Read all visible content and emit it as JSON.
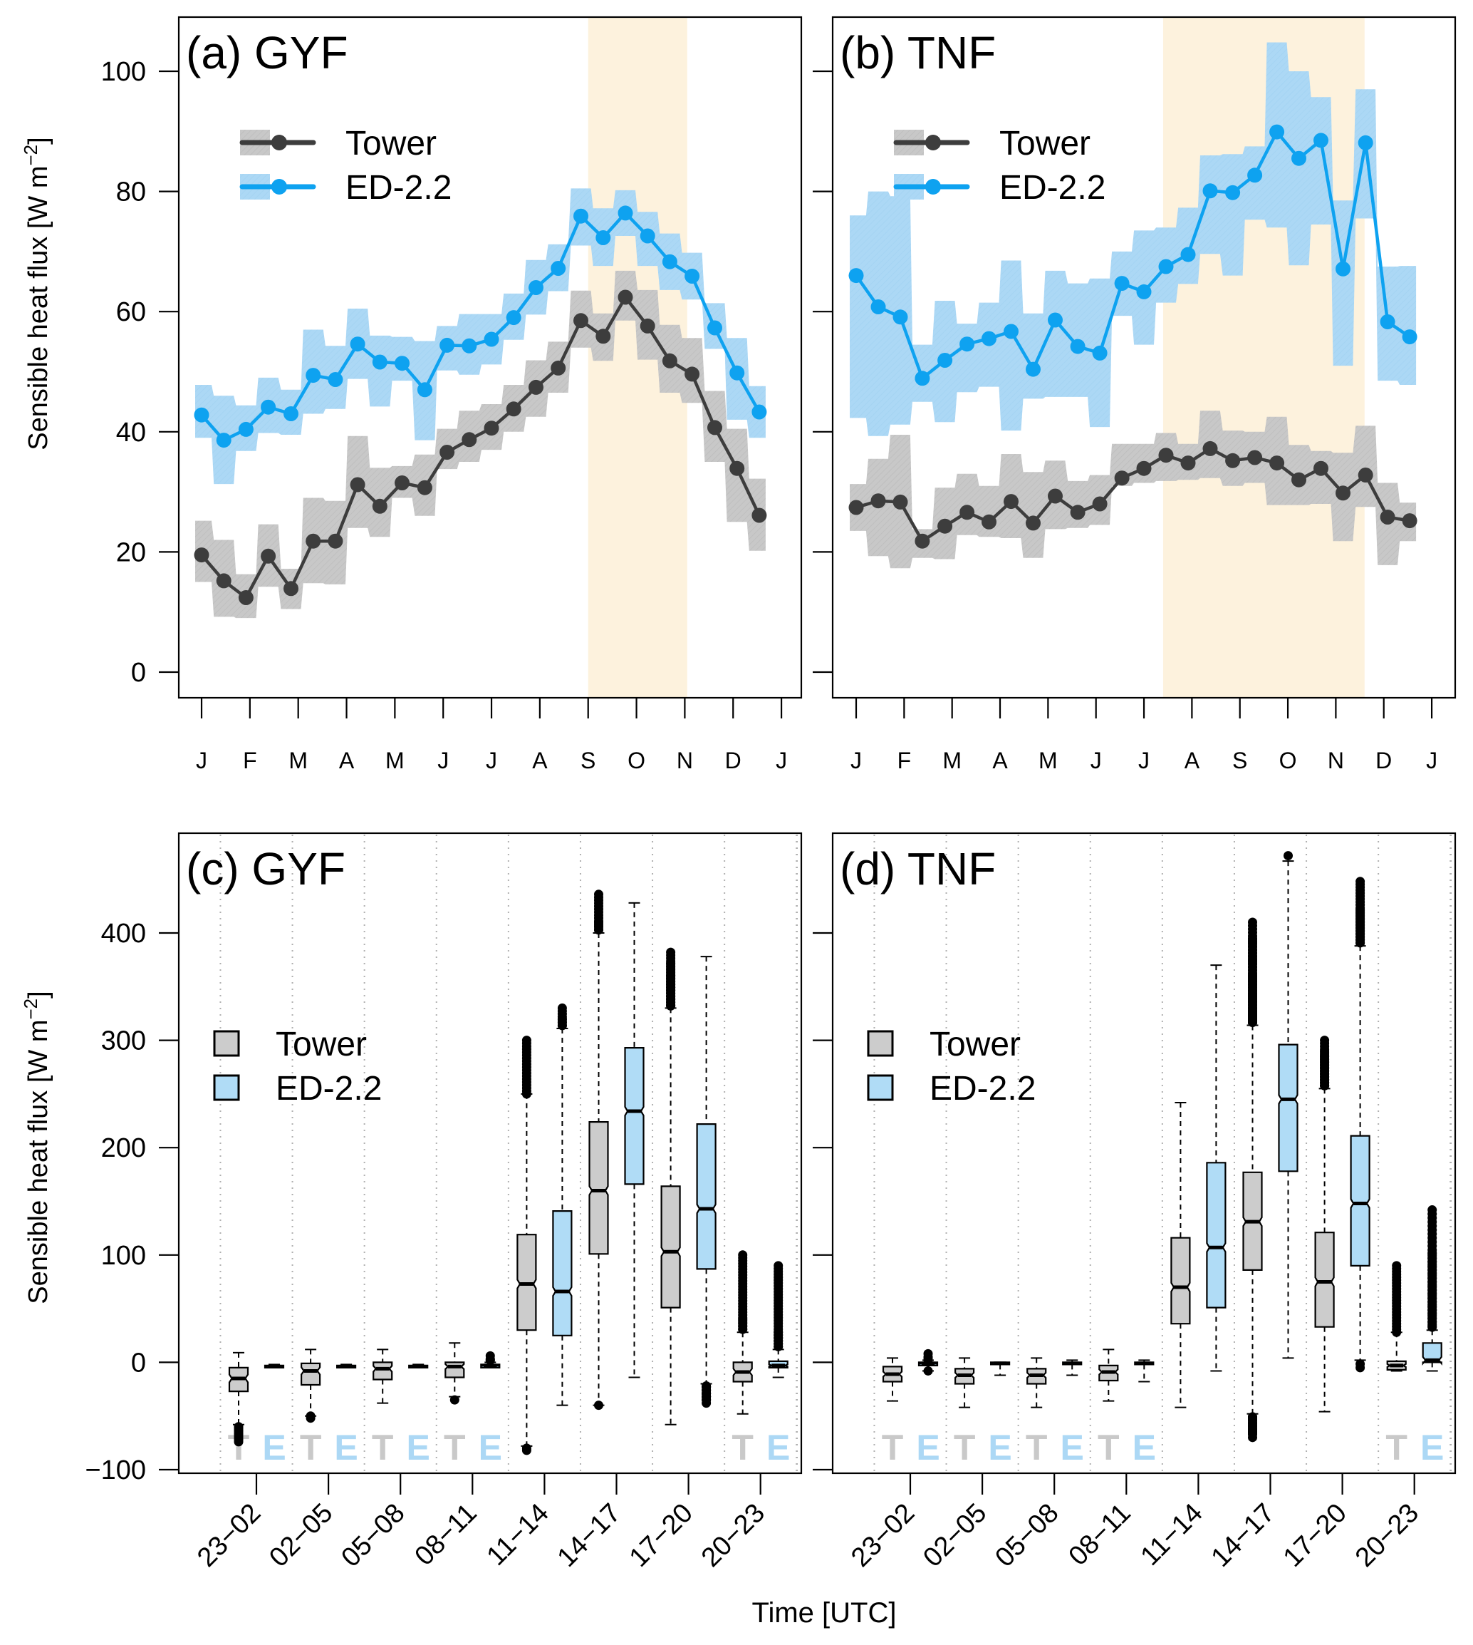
{
  "figure": {
    "ylabel": "Sensible heat flux [W m",
    "ylabel_sup": "−2",
    "ylabel_close": "]",
    "xlabel_bottom": "Time [UTC]"
  },
  "colors": {
    "tower_line": "#3d3d3d",
    "tower_band": "#c8c8c8",
    "ed_line": "#0ea2f0",
    "ed_band": "#acd8f5",
    "season_shade": "#fdf2dd",
    "tower_box": "#cccccc",
    "ed_box": "#b0dcf6",
    "tower_letter": "#c9c9c9",
    "ed_letter": "#acd8f5",
    "grid_dotted": "#b0b0b0"
  },
  "chart_data": [
    {
      "panel": "a",
      "type": "line",
      "title": "(a) GYF",
      "xlabel": "",
      "ylabel": "Sensible heat flux [W m−2]",
      "ylim": [
        0,
        105
      ],
      "yticks": [
        0,
        20,
        40,
        60,
        80,
        100
      ],
      "xtick_labels": [
        "J",
        "F",
        "M",
        "A",
        "M",
        "J",
        "J",
        "A",
        "S",
        "O",
        "N",
        "D",
        "J"
      ],
      "x_unit": "month index (0 = Jan 1, 12 = next Jan 1)",
      "x": [
        0,
        0.46,
        0.92,
        1.38,
        1.85,
        2.31,
        2.77,
        3.23,
        3.69,
        4.15,
        4.62,
        5.08,
        5.54,
        6.0,
        6.46,
        6.92,
        7.38,
        7.85,
        8.31,
        8.77,
        9.23,
        9.69,
        10.15,
        10.62,
        11.08,
        11.54
      ],
      "shade_x": [
        8.0,
        10.05
      ],
      "legend": [
        "Tower",
        "ED-2.2"
      ],
      "legend_position": "top-left",
      "series": [
        {
          "name": "Tower",
          "values": [
            19.5,
            15.2,
            12.4,
            19.3,
            13.9,
            21.8,
            21.8,
            31.2,
            27.6,
            31.5,
            30.7,
            36.6,
            38.7,
            40.6,
            43.8,
            47.4,
            50.6,
            58.5,
            55.9,
            62.4,
            57.6,
            51.8,
            49.6,
            40.7,
            33.9,
            26.1
          ],
          "lower": [
            15.0,
            9.2,
            9.0,
            14.2,
            10.5,
            14.8,
            14.6,
            24.0,
            22.5,
            29.0,
            26.0,
            33.8,
            35.0,
            37.0,
            40.0,
            42.5,
            46.5,
            54.0,
            51.8,
            58.5,
            52.0,
            46.5,
            44.8,
            35.0,
            25.0,
            20.2
          ],
          "upper": [
            25.2,
            22.0,
            16.3,
            24.6,
            17.2,
            29.0,
            28.5,
            39.3,
            34.0,
            34.3,
            36.2,
            40.5,
            43.5,
            44.6,
            47.8,
            51.9,
            55.0,
            63.5,
            59.7,
            66.8,
            63.6,
            57.8,
            55.6,
            46.8,
            40.5,
            32.2
          ]
        },
        {
          "name": "ED-2.2",
          "values": [
            42.8,
            38.6,
            40.4,
            44.1,
            43.0,
            49.4,
            48.7,
            54.6,
            51.6,
            51.4,
            47.0,
            54.4,
            54.3,
            55.4,
            59.0,
            64.0,
            67.2,
            75.9,
            72.3,
            76.4,
            72.6,
            68.3,
            65.9,
            57.3,
            49.8,
            43.3
          ],
          "lower": [
            39.0,
            31.3,
            36.8,
            39.8,
            39.5,
            43.0,
            43.8,
            48.8,
            44.2,
            48.5,
            38.6,
            50.2,
            49.5,
            51.2,
            55.3,
            59.5,
            63.4,
            71.0,
            67.6,
            72.6,
            67.6,
            63.6,
            62.0,
            53.8,
            42.0,
            39.0
          ],
          "upper": [
            47.8,
            46.0,
            44.4,
            49.0,
            47.0,
            57.0,
            54.3,
            60.5,
            56.0,
            55.8,
            55.1,
            57.6,
            59.6,
            59.6,
            63.0,
            68.6,
            71.2,
            80.5,
            77.2,
            80.2,
            76.6,
            73.0,
            69.8,
            61.4,
            55.6,
            47.6
          ]
        }
      ]
    },
    {
      "panel": "b",
      "type": "line",
      "title": "(b) TNF",
      "xlabel": "",
      "ylabel": "",
      "ylim": [
        0,
        105
      ],
      "yticks": [
        0,
        20,
        40,
        60,
        80,
        100
      ],
      "xtick_labels": [
        "J",
        "F",
        "M",
        "A",
        "M",
        "J",
        "J",
        "A",
        "S",
        "O",
        "N",
        "D",
        "J"
      ],
      "x_unit": "month index (0 = Jan 1, 12 = next Jan 1)",
      "x": [
        0,
        0.46,
        0.92,
        1.38,
        1.85,
        2.31,
        2.77,
        3.23,
        3.69,
        4.15,
        4.62,
        5.08,
        5.54,
        6.0,
        6.46,
        6.92,
        7.38,
        7.85,
        8.31,
        8.77,
        9.23,
        9.69,
        10.15,
        10.62,
        11.08,
        11.54
      ],
      "shade_x": [
        6.4,
        10.6
      ],
      "legend": [
        "Tower",
        "ED-2.2"
      ],
      "legend_position": "top-left",
      "series": [
        {
          "name": "Tower",
          "values": [
            27.4,
            28.5,
            28.3,
            21.8,
            24.3,
            26.6,
            25.0,
            28.4,
            24.8,
            29.3,
            26.6,
            28.0,
            32.3,
            33.9,
            36.1,
            34.8,
            37.2,
            35.2,
            35.7,
            34.8,
            32.0,
            33.9,
            29.8,
            32.8,
            25.8,
            25.2
          ],
          "lower": [
            23.5,
            19.3,
            17.3,
            19.0,
            18.8,
            22.8,
            22.5,
            22.3,
            19.0,
            23.8,
            24.0,
            24.5,
            31.0,
            31.5,
            31.8,
            32.0,
            32.3,
            31.0,
            31.5,
            27.8,
            27.8,
            28.0,
            21.8,
            27.5,
            17.8,
            21.8
          ],
          "upper": [
            31.3,
            35.5,
            39.5,
            23.8,
            30.7,
            33.0,
            31.0,
            36.3,
            33.3,
            35.2,
            31.8,
            32.8,
            38.0,
            38.0,
            39.8,
            38.0,
            43.5,
            40.2,
            40.0,
            42.5,
            37.8,
            36.8,
            36.5,
            41.0,
            31.5,
            28.2
          ]
        },
        {
          "name": "ED-2.2",
          "values": [
            66.0,
            60.8,
            59.1,
            48.9,
            51.9,
            54.6,
            55.5,
            56.7,
            50.4,
            58.6,
            54.2,
            53.1,
            64.7,
            63.3,
            67.5,
            69.5,
            80.1,
            79.8,
            82.7,
            89.9,
            85.5,
            88.5,
            67.1,
            88.1,
            58.3,
            55.8
          ],
          "lower": [
            42.3,
            39.3,
            41.2,
            45.0,
            41.6,
            46.6,
            47.5,
            40.2,
            45.5,
            45.8,
            45.8,
            40.8,
            59.3,
            54.5,
            61.5,
            64.6,
            69.6,
            66.0,
            75.3,
            74.0,
            67.7,
            74.5,
            51.0,
            75.5,
            48.5,
            47.8
          ],
          "upper": [
            76.0,
            80.0,
            79.2,
            54.5,
            61.8,
            58.0,
            61.5,
            68.5,
            59.7,
            66.8,
            64.7,
            65.5,
            70.0,
            73.5,
            74.0,
            77.3,
            86.0,
            86.2,
            87.5,
            104.8,
            100.0,
            95.7,
            78.5,
            97.0,
            67.5,
            67.6
          ]
        }
      ]
    },
    {
      "panel": "c",
      "type": "box",
      "title": "(c) GYF",
      "xlabel": "Time [UTC]",
      "ylabel": "Sensible heat flux [W m−2]",
      "ylim": [
        -100,
        450
      ],
      "yticks": [
        -100,
        0,
        100,
        200,
        300,
        400
      ],
      "categories": [
        "23−02",
        "02−05",
        "05−08",
        "08−11",
        "11−14",
        "14−17",
        "17−20",
        "20−23"
      ],
      "legend": [
        "Tower",
        "ED-2.2"
      ],
      "legend_position": "top-left",
      "te_labels_in": [
        "23−02",
        "02−05",
        "05−08",
        "08−11",
        "20−23"
      ],
      "series": [
        {
          "name": "Tower",
          "whisker_low": [
            -58,
            -50,
            -38,
            -32,
            -78,
            -40,
            -58,
            -48
          ],
          "q1": [
            -27,
            -21,
            -16,
            -14,
            30,
            101,
            51,
            -18
          ],
          "median": [
            -15,
            -8,
            -6,
            -4,
            73,
            160,
            103,
            -9
          ],
          "q3": [
            -5,
            -1,
            0,
            0,
            119,
            224,
            164,
            0
          ],
          "whisker_high": [
            9,
            12,
            12,
            18,
            250,
            400,
            330,
            28
          ],
          "outliers_low": [
            -60,
            -82,
            -52,
            -72,
            -40,
            -74,
            -35,
            -80,
            -50,
            -70
          ],
          "outliers_high": [
            40,
            250,
            300,
            360,
            382,
            410,
            436,
            332,
            372,
            100
          ]
        },
        {
          "name": "ED-2.2",
          "whisker_low": [
            -3,
            -3,
            -3,
            -3,
            -40,
            -14,
            -20,
            -14
          ],
          "q1": [
            -5,
            -5,
            -5,
            -5,
            25,
            166,
            87,
            -5
          ],
          "median": [
            -4,
            -4,
            -4,
            -3,
            66,
            234,
            143,
            -3
          ],
          "q3": [
            -3,
            -3,
            -3,
            -2,
            141,
            293,
            222,
            1
          ],
          "whisker_high": [
            -2,
            -2,
            -2,
            0,
            311,
            428,
            378,
            12
          ],
          "outliers_low": [
            -35,
            -22,
            -35,
            -32,
            -38
          ],
          "outliers_high": [
            2,
            6,
            2,
            28,
            320,
            330,
            90
          ]
        }
      ]
    },
    {
      "panel": "d",
      "type": "box",
      "title": "(d) TNF",
      "xlabel": "Time [UTC]",
      "ylabel": "",
      "ylim": [
        -100,
        450
      ],
      "yticks": [
        -100,
        0,
        100,
        200,
        300,
        400
      ],
      "categories": [
        "23−02",
        "02−05",
        "05−08",
        "08−11",
        "11−14",
        "14−17",
        "17−20",
        "20−23"
      ],
      "legend": [
        "Tower",
        "ED-2.2"
      ],
      "legend_position": "top-left",
      "te_labels_in": [
        "23−02",
        "02−05",
        "05−08",
        "08−11",
        "20−23"
      ],
      "series": [
        {
          "name": "Tower",
          "whisker_low": [
            -36,
            -42,
            -42,
            -36,
            -42,
            -48,
            -46,
            -8
          ],
          "q1": [
            -18,
            -20,
            -20,
            -17,
            36,
            86,
            33,
            -7
          ],
          "median": [
            -11,
            -12,
            -12,
            -9,
            70,
            131,
            75,
            -3
          ],
          "q3": [
            -4,
            -6,
            -6,
            -3,
            116,
            177,
            121,
            1
          ],
          "whisker_high": [
            4,
            4,
            4,
            12,
            242,
            314,
            255,
            28
          ],
          "outliers_low": [
            -52,
            -65,
            -66,
            -70
          ],
          "outliers_high": [
            28,
            285,
            290,
            410,
            395,
            360,
            330,
            300,
            90
          ]
        },
        {
          "name": "ED-2.2",
          "whisker_low": [
            -8,
            -12,
            -12,
            -18,
            -8,
            4,
            2,
            -8
          ],
          "q1": [
            -3,
            -2,
            -2,
            -2,
            51,
            178,
            90,
            0
          ],
          "median": [
            -1,
            -1,
            -1,
            -1,
            107,
            245,
            148,
            2
          ],
          "q3": [
            0,
            0,
            0,
            0,
            186,
            296,
            211,
            18
          ],
          "whisker_high": [
            2,
            0,
            2,
            2,
            370,
            467,
            388,
            30
          ],
          "outliers_low": [
            -5,
            -8
          ],
          "outliers_high": [
            8,
            2,
            4,
            102,
            472,
            448,
            422,
            142
          ]
        }
      ]
    }
  ]
}
